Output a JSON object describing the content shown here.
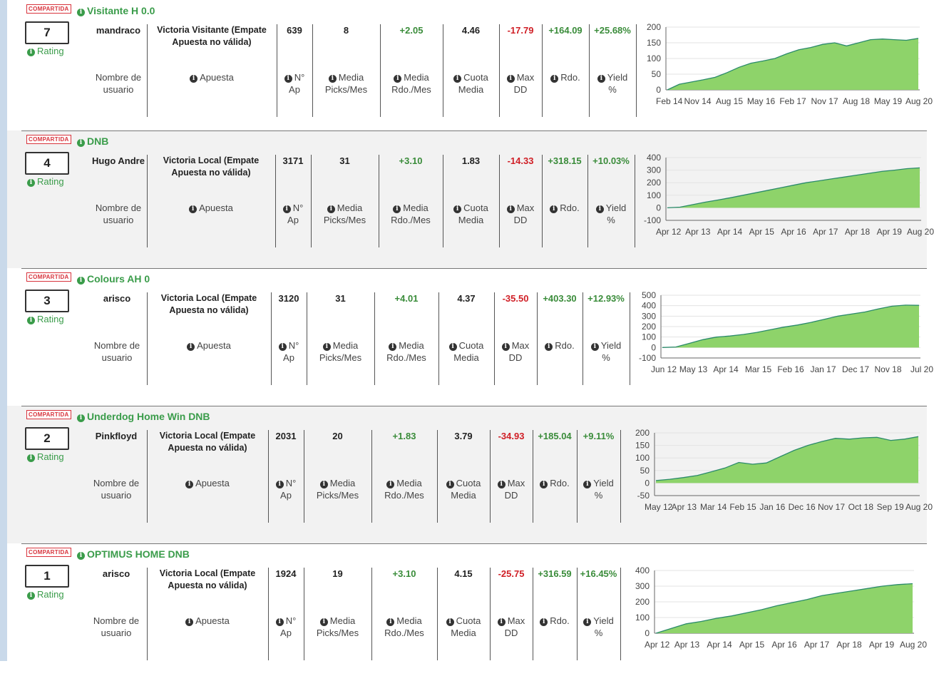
{
  "labels": {
    "rating": "Rating",
    "username": [
      "Nombre de",
      "usuario"
    ],
    "apuesta": "Apuesta",
    "n_ap": [
      "N°",
      "Ap"
    ],
    "picks": [
      "Media",
      "Picks/Mes"
    ],
    "rdo_mes": [
      "Media",
      "Rdo./Mes"
    ],
    "cuota": [
      "Cuota",
      "Media"
    ],
    "maxdd": [
      "Max",
      "DD"
    ],
    "rdo": "Rdo.",
    "yield": [
      "Yield",
      "%"
    ]
  },
  "stamp": "COMPARTIDA",
  "colors": {
    "positive": "#3a8c3a",
    "negative": "#d01f26",
    "title": "#3a9c4a",
    "area": "#8ed36a",
    "line": "#2a8a6a"
  },
  "tipsters": [
    {
      "title": "Visitante H 0.0",
      "rank": "7",
      "user": "mandraco",
      "bet": "Victoria Visitante (Empate Apuesta no válida)",
      "n_ap": "639",
      "picks": "8",
      "rdo_mes": "+2.05",
      "cuota": "4.46",
      "maxdd": "-17.79",
      "rdo": "+164.09",
      "yield": "+25.68%",
      "chart_data": {
        "type": "area",
        "y_ticks": [
          "200",
          "150",
          "100",
          "50",
          "0"
        ],
        "ylim": [
          0,
          200
        ],
        "x_ticks": [
          "Feb 14",
          "Nov 14",
          "Aug 15",
          "May 16",
          "Feb 17",
          "Nov 17",
          "Aug 18",
          "May 19",
          "Aug 20"
        ],
        "values": [
          0,
          18,
          25,
          32,
          40,
          55,
          72,
          85,
          92,
          100,
          115,
          128,
          135,
          145,
          150,
          140,
          150,
          160,
          162,
          160,
          158,
          164
        ]
      }
    },
    {
      "title": "DNB",
      "rank": "4",
      "user": "Hugo Andre",
      "bet": "Victoria Local (Empate Apuesta no válida)",
      "n_ap": "3171",
      "picks": "31",
      "rdo_mes": "+3.10",
      "cuota": "1.83",
      "maxdd": "-14.33",
      "rdo": "+318.15",
      "yield": "+10.03%",
      "chart_data": {
        "type": "area",
        "y_ticks": [
          "400",
          "300",
          "200",
          "100",
          "0",
          "-100"
        ],
        "ylim": [
          -100,
          400
        ],
        "x_ticks": [
          "Apr 12",
          "Apr 13",
          "Apr 14",
          "Apr 15",
          "Apr 16",
          "Apr 17",
          "Apr 18",
          "Apr 19",
          "Aug 20"
        ],
        "values": [
          0,
          5,
          25,
          45,
          62,
          80,
          100,
          120,
          140,
          160,
          180,
          200,
          215,
          230,
          245,
          260,
          275,
          290,
          300,
          312,
          318
        ]
      }
    },
    {
      "title": "Colours AH 0",
      "rank": "3",
      "user": "arisco",
      "bet": "Victoria Local (Empate Apuesta no válida)",
      "n_ap": "3120",
      "picks": "31",
      "rdo_mes": "+4.01",
      "cuota": "4.37",
      "maxdd": "-35.50",
      "rdo": "+403.30",
      "yield": "+12.93%",
      "chart_data": {
        "type": "area",
        "y_ticks": [
          "500",
          "400",
          "300",
          "200",
          "100",
          "0",
          "-100"
        ],
        "ylim": [
          -100,
          500
        ],
        "x_ticks": [
          "Jun 12",
          "May 13",
          "Apr 14",
          "Mar 15",
          "Feb 16",
          "Jan 17",
          "Dec 17",
          "Nov 18",
          "Jul 20"
        ],
        "values": [
          0,
          5,
          40,
          75,
          100,
          110,
          125,
          145,
          170,
          195,
          215,
          240,
          270,
          300,
          320,
          340,
          370,
          395,
          405,
          403
        ]
      }
    },
    {
      "title": "Underdog Home Win DNB",
      "rank": "2",
      "user": "Pinkfloyd",
      "bet": "Victoria Local (Empate Apuesta no válida)",
      "n_ap": "2031",
      "picks": "20",
      "rdo_mes": "+1.83",
      "cuota": "3.79",
      "maxdd": "-34.93",
      "rdo": "+185.04",
      "yield": "+9.11%",
      "chart_data": {
        "type": "area",
        "y_ticks": [
          "200",
          "150",
          "100",
          "50",
          "0",
          "-50"
        ],
        "ylim": [
          -50,
          200
        ],
        "x_ticks": [
          "May 12",
          "Apr 13",
          "Mar 14",
          "Feb 15",
          "Jan 16",
          "Dec 16",
          "Nov 17",
          "Oct 18",
          "Sep 19",
          "Aug 20"
        ],
        "values": [
          10,
          15,
          22,
          30,
          45,
          60,
          82,
          75,
          80,
          105,
          130,
          150,
          165,
          178,
          175,
          180,
          182,
          170,
          175,
          185
        ]
      }
    },
    {
      "title": "OPTIMUS HOME DNB",
      "rank": "1",
      "user": "arisco",
      "bet": "Victoria Local (Empate Apuesta no válida)",
      "n_ap": "1924",
      "picks": "19",
      "rdo_mes": "+3.10",
      "cuota": "4.15",
      "maxdd": "-25.75",
      "rdo": "+316.59",
      "yield": "+16.45%",
      "chart_data": {
        "type": "area",
        "y_ticks": [
          "400",
          "300",
          "200",
          "100",
          "0"
        ],
        "ylim": [
          0,
          400
        ],
        "x_ticks": [
          "Apr 12",
          "Apr 13",
          "Apr 14",
          "Apr 15",
          "Apr 16",
          "Apr 17",
          "Apr 18",
          "Apr 19",
          "Aug 20"
        ],
        "values": [
          0,
          30,
          60,
          75,
          95,
          110,
          130,
          150,
          175,
          195,
          215,
          240,
          255,
          270,
          285,
          300,
          310,
          316
        ]
      }
    }
  ]
}
